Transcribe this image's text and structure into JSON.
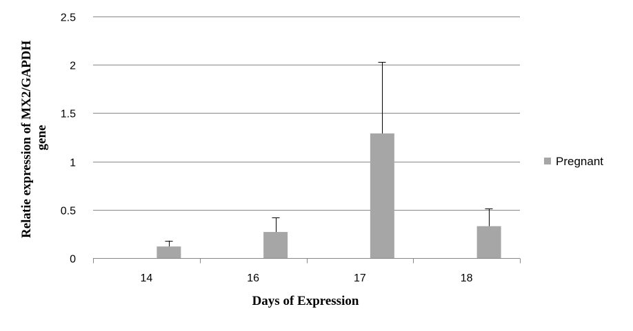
{
  "chart_data": {
    "type": "bar",
    "categories": [
      "14",
      "16",
      "17",
      "18"
    ],
    "series": [
      {
        "name": "Pregnant",
        "values": [
          0.12,
          0.27,
          1.29,
          0.33
        ],
        "error_plus": [
          0.06,
          0.15,
          0.74,
          0.18
        ],
        "color": "#a6a6a6"
      }
    ],
    "xlabel": "Days of Expression",
    "ylabel_lines": [
      "Relatie expression of MX2/GAPDH",
      "gene"
    ],
    "ylim": [
      0,
      2.5
    ],
    "yticks": [
      0,
      0.5,
      1,
      1.5,
      2,
      2.5
    ],
    "ytick_labels": [
      "0",
      "0.5",
      "1",
      "1.5",
      "2",
      "2.5"
    ],
    "grid": true,
    "gridline_color": "#868686",
    "axis_color": "#868686",
    "legend_position": "right"
  }
}
